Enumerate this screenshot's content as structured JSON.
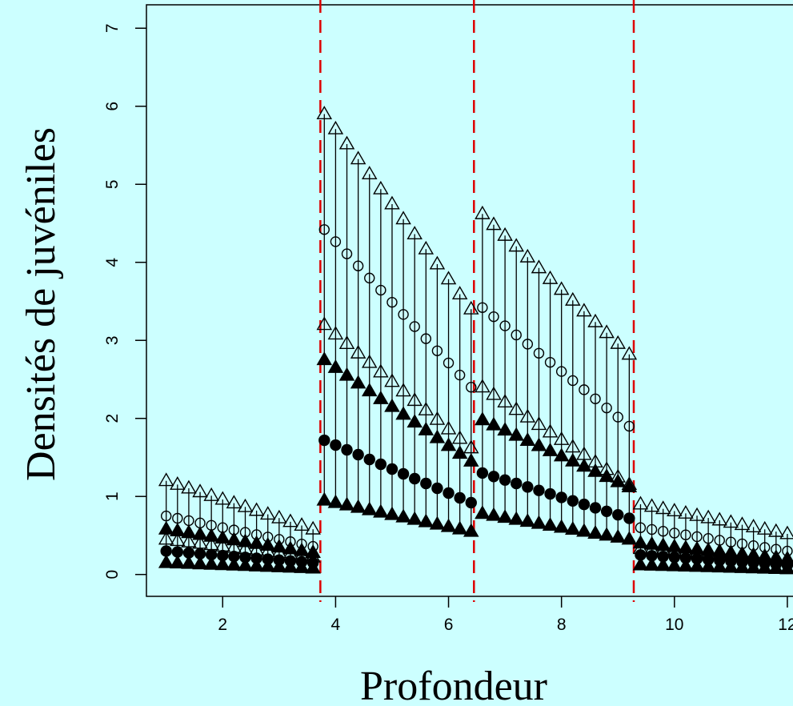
{
  "chart_data": {
    "type": "scatter",
    "title": "",
    "xlabel": "Profondeur",
    "ylabel": "Densités de juvéniles",
    "xlim": [
      0.65,
      12.1
    ],
    "ylim": [
      -0.28,
      7.3
    ],
    "xticks": [
      2,
      4,
      6,
      8,
      10,
      12
    ],
    "yticks": [
      0,
      1,
      2,
      3,
      4,
      5,
      6,
      7
    ],
    "grid": false,
    "legend": "none",
    "breakpoints": [
      3.73,
      6.45,
      9.28
    ],
    "segments": [
      {
        "x_start": 1.0,
        "x_end": 3.6,
        "upper_hi": [
          1.2,
          0.58
        ],
        "upper_lo": [
          0.45,
          0.22
        ],
        "median": [
          0.75,
          0.36
        ],
        "lower_hi": [
          0.58,
          0.28
        ],
        "lower_lo": [
          0.15,
          0.08
        ],
        "lower_mid": [
          0.3,
          0.15
        ]
      },
      {
        "x_start": 3.8,
        "x_end": 6.4,
        "upper_hi": [
          5.9,
          3.4
        ],
        "upper_lo": [
          3.2,
          1.62
        ],
        "median": [
          4.42,
          2.4
        ],
        "lower_hi": [
          2.75,
          1.45
        ],
        "lower_lo": [
          0.95,
          0.55
        ],
        "lower_mid": [
          1.72,
          0.92
        ]
      },
      {
        "x_start": 6.6,
        "x_end": 9.2,
        "upper_hi": [
          4.62,
          2.82
        ],
        "upper_lo": [
          2.4,
          1.15
        ],
        "median": [
          3.42,
          1.9
        ],
        "lower_hi": [
          1.98,
          1.12
        ],
        "lower_lo": [
          0.78,
          0.45
        ],
        "lower_mid": [
          1.3,
          0.72
        ]
      },
      {
        "x_start": 9.4,
        "x_end": 12.0,
        "upper_hi": [
          0.9,
          0.52
        ],
        "upper_lo": [
          0.33,
          0.18
        ],
        "median": [
          0.6,
          0.3
        ],
        "lower_hi": [
          0.4,
          0.2
        ],
        "lower_lo": [
          0.12,
          0.07
        ],
        "lower_mid": [
          0.25,
          0.12
        ]
      }
    ],
    "point_step": 0.2,
    "colors": {
      "background": "#ccffff",
      "breakpoint_line": "#dd0000",
      "marker": "#000000"
    }
  }
}
